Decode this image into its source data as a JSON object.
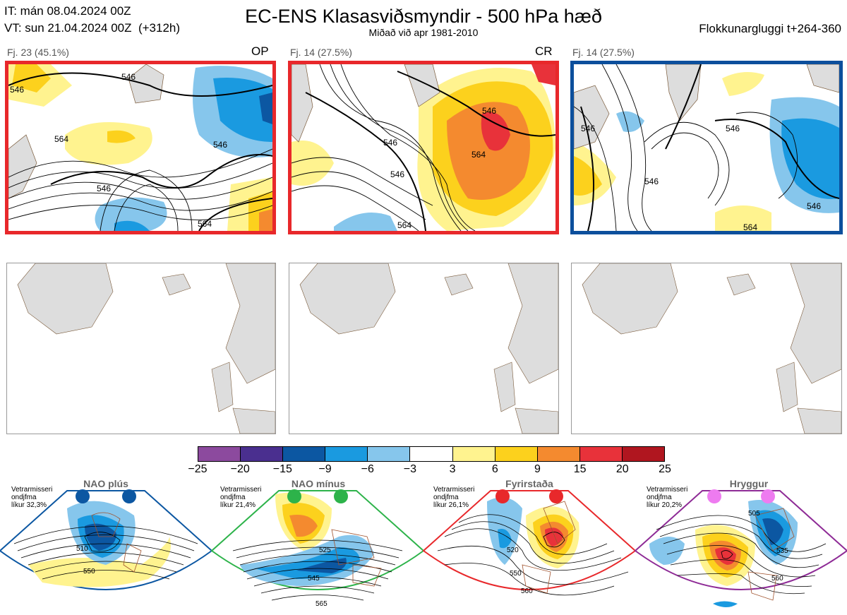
{
  "header": {
    "it_line": "IT: mán 08.04.2024 00Z",
    "vt_line": "VT: sun 21.04.2024 00Z  (+312h)",
    "title": "EC-ENS Klasasviðsmyndir - 500 hPa hæð",
    "subtitle": "Miðað við apr 1981-2010",
    "window": "Flokkunargluggi t+264-360"
  },
  "clusters": [
    {
      "label": "Fj. 23 (45.1%)",
      "tag": "OP",
      "border": "#e8282b"
    },
    {
      "label": "Fj. 14 (27.5%)",
      "tag": "CR",
      "border": "#e8282b"
    },
    {
      "label": "Fj. 14 (27.5%)",
      "tag": "",
      "border": "#0c4f9c"
    }
  ],
  "contour_labels": {
    "p1": [
      "546",
      "546",
      "546",
      "546",
      "564",
      "564"
    ],
    "p2": [
      "546",
      "546",
      "546",
      "564",
      "564"
    ],
    "p3": [
      "546",
      "546",
      "546",
      "546",
      "564"
    ]
  },
  "colorbar": {
    "ticks": [
      "−25",
      "−20",
      "−15",
      "−9",
      "−6",
      "−3",
      "3",
      "6",
      "9",
      "15",
      "20",
      "25"
    ],
    "colors": [
      "#8c4a9e",
      "#4a2f8f",
      "#0c57a2",
      "#1a9ae0",
      "#86c6ec",
      "#ffffff",
      "#fff38f",
      "#fcd11d",
      "#f48a2f",
      "#e8323a",
      "#b0161f"
    ]
  },
  "regimes": [
    {
      "name": "NAO plús",
      "note": "Vetrarmisseri\nondjfma\nlíkur 32,3%",
      "dot_color": "#0c57a2",
      "edge": "#0c57a2",
      "labels": [
        "510",
        "550"
      ]
    },
    {
      "name": "NAO mínus",
      "note": "Vetrarmisseri\nondjfma\nlíkur 21,4%",
      "dot_color": "#2db34a",
      "edge": "#2db34a",
      "labels": [
        "525",
        "545",
        "565"
      ]
    },
    {
      "name": "Fyrirstaða",
      "note": "Vetrarmisseri\nondjfma\nlíkur 26,1%",
      "dot_color": "#e8282b",
      "edge": "#e8282b",
      "labels": [
        "520",
        "550",
        "560"
      ]
    },
    {
      "name": "Hryggur",
      "note": "Vetrarmisseri\nondjfma\nlíkur 20,2%",
      "dot_color": "#ee7bf0",
      "edge": "#8e2b96",
      "labels": [
        "505",
        "535",
        "560"
      ]
    }
  ]
}
